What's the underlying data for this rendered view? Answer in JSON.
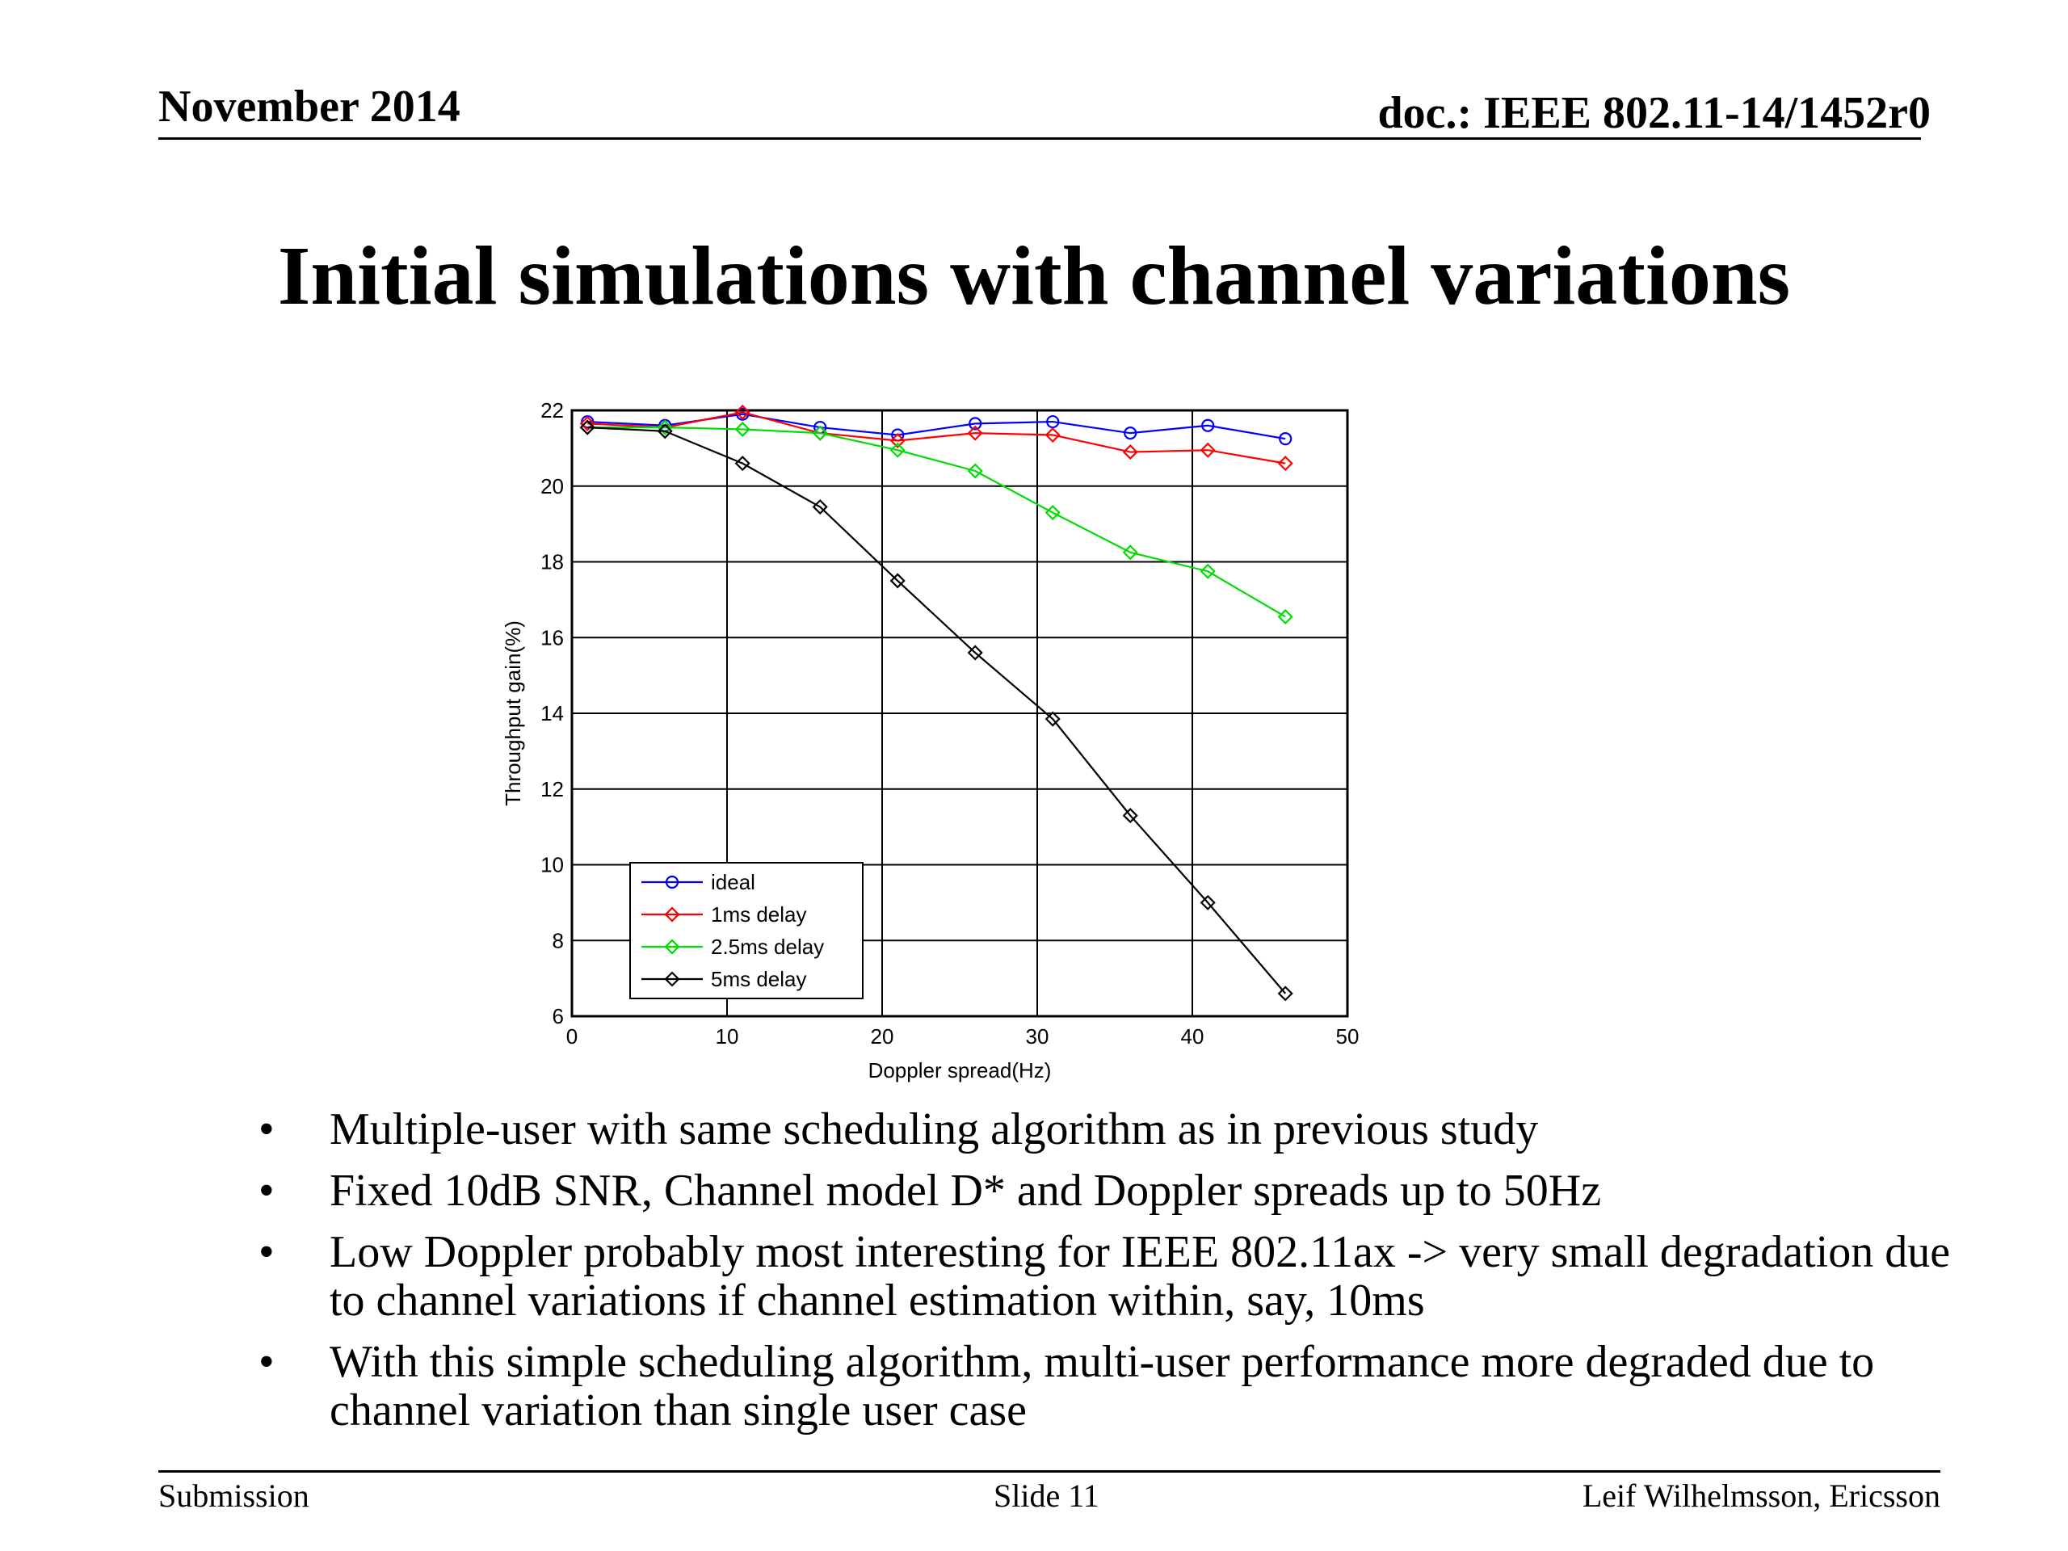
{
  "header": {
    "date": "November 2014",
    "doc": "doc.: IEEE 802.11-14/1452r0"
  },
  "title": "Initial simulations with channel variations",
  "bullets": [
    "Multiple-user with same scheduling algorithm as in previous study",
    "Fixed 10dB SNR, Channel model D* and Doppler spreads up to 50Hz",
    "Low Doppler probably most interesting for IEEE 802.11ax -> very small degradation due to channel variations if channel estimation within, say, 10ms",
    "With this simple scheduling algorithm, multi-user performance more degraded due to channel variation than single user case"
  ],
  "bullet_symbol": "•",
  "footer": {
    "left": "Submission",
    "center": "Slide 11",
    "right": "Leif Wilhelmsson, Ericsson"
  },
  "chart_data": {
    "type": "line",
    "title": "",
    "xlabel": "Doppler spread(Hz)",
    "ylabel": "Throughput gain(%)",
    "xlim": [
      0,
      50
    ],
    "ylim": [
      6,
      22
    ],
    "xticks": [
      0,
      10,
      20,
      30,
      40,
      50
    ],
    "yticks": [
      6,
      8,
      10,
      12,
      14,
      16,
      18,
      20,
      22
    ],
    "grid": true,
    "legend_position": "bottom-left",
    "x": [
      1,
      6,
      11,
      16,
      21,
      26,
      31,
      36,
      41,
      46
    ],
    "series": [
      {
        "name": "ideal",
        "color": "#0000ff",
        "marker": "circle",
        "values": [
          21.7,
          21.6,
          21.9,
          21.55,
          21.35,
          21.65,
          21.7,
          21.4,
          21.6,
          21.25
        ]
      },
      {
        "name": "1ms delay",
        "color": "#ff0000",
        "marker": "diamond",
        "values": [
          21.65,
          21.55,
          21.95,
          21.4,
          21.2,
          21.4,
          21.35,
          20.9,
          20.95,
          20.6
        ]
      },
      {
        "name": "2.5ms delay",
        "color": "#00dd00",
        "marker": "diamond",
        "values": [
          21.55,
          21.55,
          21.5,
          21.4,
          20.95,
          20.4,
          19.3,
          18.25,
          17.75,
          16.55
        ]
      },
      {
        "name": "5ms delay",
        "color": "#000000",
        "marker": "diamond",
        "values": [
          21.55,
          21.45,
          20.6,
          19.45,
          17.5,
          15.6,
          13.85,
          11.3,
          9.0,
          6.6
        ]
      }
    ]
  }
}
